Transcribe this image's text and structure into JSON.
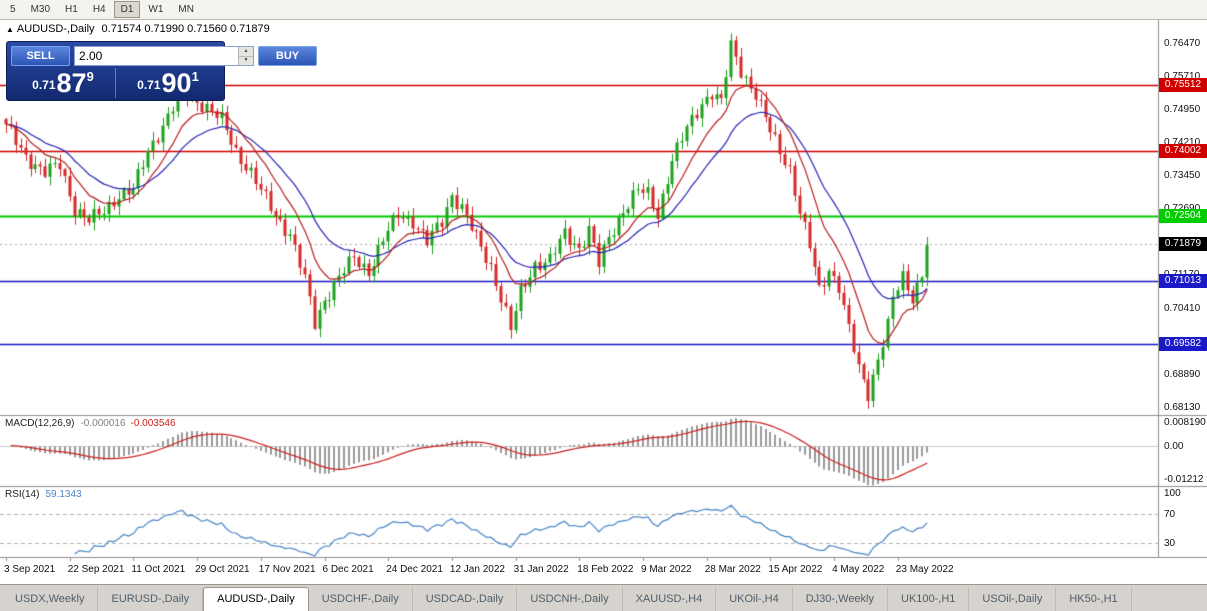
{
  "toolbar": {
    "timeframes": [
      "5",
      "M30",
      "H1",
      "H4",
      "D1",
      "W1",
      "MN"
    ],
    "active_timeframe": "D1"
  },
  "header": {
    "window_icon": "▲",
    "symbol": "AUDUSD-,Daily",
    "ohlc": "0.71574 0.71990 0.71560 0.71879"
  },
  "one_click": {
    "sell_label": "SELL",
    "buy_label": "BUY",
    "volume": "2.00",
    "spin_up_icon": "▲",
    "spin_down_icon": "▼",
    "sell_price": {
      "prefix": "0.71",
      "big": "87",
      "sup": "9"
    },
    "buy_price": {
      "prefix": "0.71",
      "big": "90",
      "sup": "1"
    }
  },
  "tabs": {
    "items": [
      "USDX,Weekly",
      "EURUSD-,Daily",
      "AUDUSD-,Daily",
      "USDCHF-,Daily",
      "USDCAD-,Daily",
      "USDCNH-,Daily",
      "XAUUSD-,H4",
      "UKOil-,H4",
      "DJ30-,Weekly",
      "UK100-,H1",
      "USOil-,Daily",
      "HK50-,H1"
    ],
    "active": "AUDUSD-,Daily"
  },
  "chart_data": {
    "type": "candlestick",
    "symbol": "AUDUSD-",
    "timeframe": "Daily",
    "num_candles": 189,
    "candles_per_label": 13,
    "visible_range": {
      "price_min": 0.6795,
      "price_max": 0.77
    },
    "x_labels": [
      "3 Sep 2021",
      "22 Sep 2021",
      "11 Oct 2021",
      "29 Oct 2021",
      "17 Nov 2021",
      "6 Dec 2021",
      "24 Dec 2021",
      "12 Jan 2022",
      "31 Jan 2022",
      "18 Feb 2022",
      "9 Mar 2022",
      "28 Mar 2022",
      "15 Apr 2022",
      "4 May 2022",
      "23 May 2022"
    ],
    "price_ticks": [
      "0.76470",
      "0.75710",
      "0.74950",
      "0.74210",
      "0.73450",
      "0.72690",
      "0.71170",
      "0.70410",
      "0.68890",
      "0.68130"
    ],
    "close_waypoints": [
      [
        0,
        0.7455
      ],
      [
        4,
        0.7388
      ],
      [
        8,
        0.735
      ],
      [
        11,
        0.7368
      ],
      [
        14,
        0.7268
      ],
      [
        17,
        0.724
      ],
      [
        20,
        0.7262
      ],
      [
        23,
        0.73
      ],
      [
        26,
        0.731
      ],
      [
        29,
        0.74
      ],
      [
        33,
        0.7478
      ],
      [
        36,
        0.754
      ],
      [
        38,
        0.7522
      ],
      [
        41,
        0.75
      ],
      [
        44,
        0.747
      ],
      [
        47,
        0.74
      ],
      [
        50,
        0.735
      ],
      [
        52,
        0.7308
      ],
      [
        55,
        0.7252
      ],
      [
        58,
        0.721
      ],
      [
        61,
        0.7105
      ],
      [
        63,
        0.7005
      ],
      [
        65,
        0.706
      ],
      [
        68,
        0.711
      ],
      [
        71,
        0.7155
      ],
      [
        74,
        0.7125
      ],
      [
        77,
        0.7195
      ],
      [
        80,
        0.7255
      ],
      [
        83,
        0.724
      ],
      [
        86,
        0.719
      ],
      [
        89,
        0.724
      ],
      [
        91,
        0.73
      ],
      [
        93,
        0.727
      ],
      [
        96,
        0.72
      ],
      [
        99,
        0.7135
      ],
      [
        102,
        0.703
      ],
      [
        103,
        0.699
      ],
      [
        105,
        0.7075
      ],
      [
        108,
        0.714
      ],
      [
        111,
        0.715
      ],
      [
        114,
        0.721
      ],
      [
        117,
        0.7178
      ],
      [
        119,
        0.722
      ],
      [
        121,
        0.714
      ],
      [
        123,
        0.72
      ],
      [
        126,
        0.7265
      ],
      [
        129,
        0.731
      ],
      [
        131,
        0.73
      ],
      [
        133,
        0.7255
      ],
      [
        136,
        0.738
      ],
      [
        139,
        0.745
      ],
      [
        142,
        0.751
      ],
      [
        144,
        0.7535
      ],
      [
        146,
        0.751
      ],
      [
        148,
        0.764
      ],
      [
        150,
        0.7585
      ],
      [
        153,
        0.753
      ],
      [
        156,
        0.7445
      ],
      [
        158,
        0.74
      ],
      [
        160,
        0.736
      ],
      [
        162,
        0.726
      ],
      [
        164,
        0.718
      ],
      [
        166,
        0.708
      ],
      [
        168,
        0.713
      ],
      [
        170,
        0.709
      ],
      [
        172,
        0.699
      ],
      [
        174,
        0.69
      ],
      [
        176,
        0.6845
      ],
      [
        178,
        0.6925
      ],
      [
        180,
        0.7
      ],
      [
        181,
        0.706
      ],
      [
        183,
        0.711
      ],
      [
        185,
        0.7065
      ],
      [
        187,
        0.712
      ],
      [
        188,
        0.7188
      ]
    ],
    "h_lines": [
      {
        "price": 0.75512,
        "label": "0.75512",
        "color": "#d10000",
        "width": 1.4
      },
      {
        "price": 0.74002,
        "label": "0.74002",
        "color": "#d10000",
        "width": 1.4
      },
      {
        "price": 0.72504,
        "label": "0.72504",
        "color": "#00cc00",
        "width": 2
      },
      {
        "price": 0.71013,
        "label": "0.71013",
        "color": "#1a1ac8",
        "width": 1.6
      },
      {
        "price": 0.69582,
        "label": "0.69582",
        "color": "#1a1ac8",
        "width": 1.6
      }
    ],
    "current_price": {
      "value": 0.71879,
      "label": "0.71879"
    },
    "moving_averages": [
      {
        "period": 10,
        "color": "#b82020"
      },
      {
        "period": 21,
        "color": "#2828b4"
      }
    ],
    "indicators": {
      "macd": {
        "title": "MACD(12,26,9)",
        "value_main": "-0.000016",
        "value_signal": "-0.003546",
        "axis_ticks": [
          "0.008190",
          "0.00",
          "-0.01212"
        ],
        "range": {
          "min": -0.0138,
          "max": 0.0105
        }
      },
      "rsi": {
        "title": "RSI(14)",
        "value": "59.1343",
        "axis_ticks": [
          "100",
          "70",
          "30"
        ],
        "levels": [
          70,
          30
        ],
        "range": {
          "min": 10,
          "max": 110
        }
      }
    },
    "colors": {
      "candle_up": "#1fa11f",
      "candle_down": "#d42b2b",
      "macd_hist": "#999999",
      "macd_signal": "#cc2020",
      "rsi_line": "#4a86c8"
    }
  }
}
